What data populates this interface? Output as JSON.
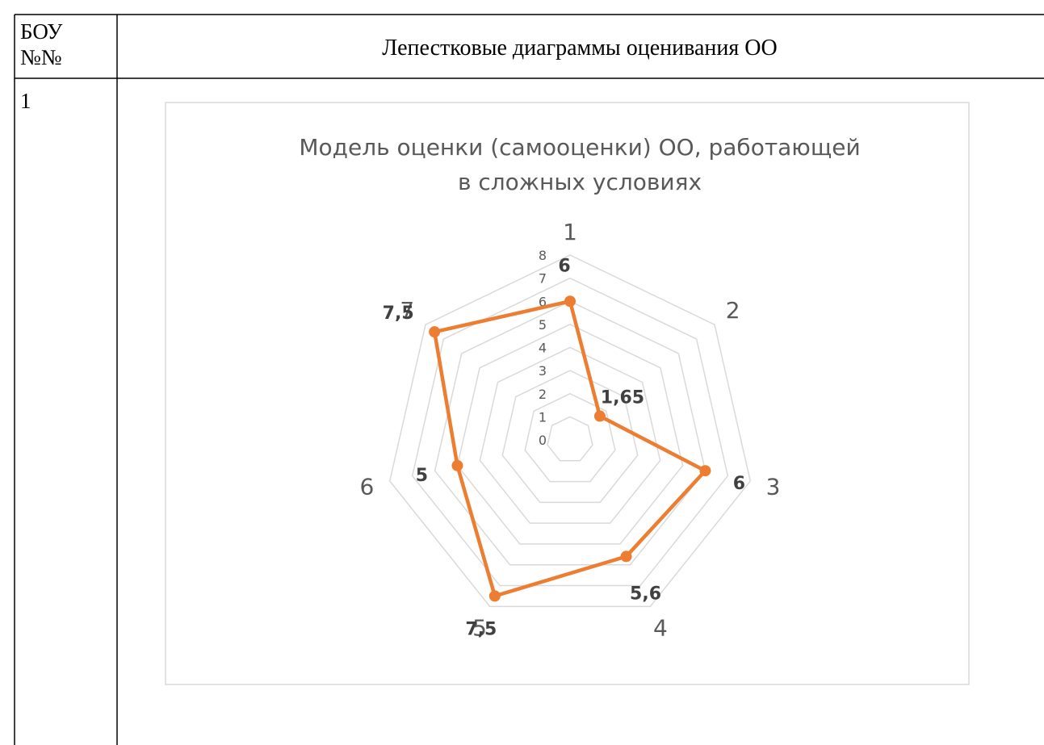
{
  "table": {
    "header": [
      "БОУ\n№№",
      "Лепестковые диаграммы оценивания ОО"
    ],
    "rows": [
      [
        "1"
      ]
    ]
  },
  "chart_data": {
    "type": "radar",
    "title": "Модель оценки (самооценки) ОО, работающей\nв сложных условиях",
    "categories": [
      "1",
      "2",
      "3",
      "4",
      "5",
      "6",
      "7"
    ],
    "values": [
      6,
      1.65,
      6,
      5.6,
      7.5,
      5,
      7.5
    ],
    "value_labels": [
      "6",
      "1,65",
      "6",
      "5,6",
      "7,5",
      "5",
      "7,5"
    ],
    "color": "#ed7d31",
    "rlim": [
      0,
      8
    ],
    "rticks": [
      0,
      1,
      2,
      3,
      4,
      5,
      6,
      7,
      8
    ],
    "grid": true
  }
}
